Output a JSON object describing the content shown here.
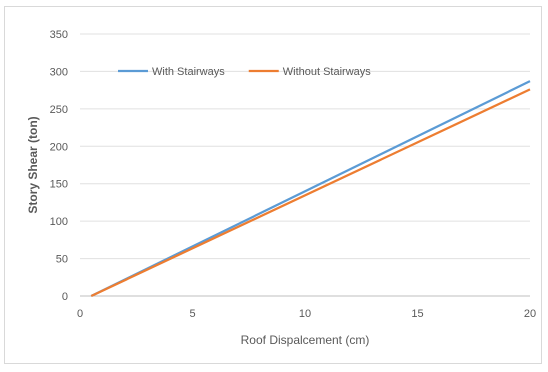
{
  "chart_data": {
    "type": "line",
    "title": "",
    "xlabel": "Roof Dispalcement (cm)",
    "ylabel": "Story Shear (ton)",
    "xlim": [
      0,
      20
    ],
    "ylim": [
      0,
      350
    ],
    "xticks": [
      0,
      5,
      10,
      15,
      20
    ],
    "yticks": [
      0,
      50,
      100,
      150,
      200,
      250,
      300,
      350
    ],
    "grid": "horizontal",
    "legend_position": "top-left",
    "series": [
      {
        "name": "With Stairways",
        "color": "#5b9bd5",
        "x": [
          0.5,
          20
        ],
        "y": [
          0,
          287
        ]
      },
      {
        "name": "Without Stairways",
        "color": "#ed7d31",
        "x": [
          0.5,
          20
        ],
        "y": [
          0,
          276
        ]
      }
    ]
  }
}
